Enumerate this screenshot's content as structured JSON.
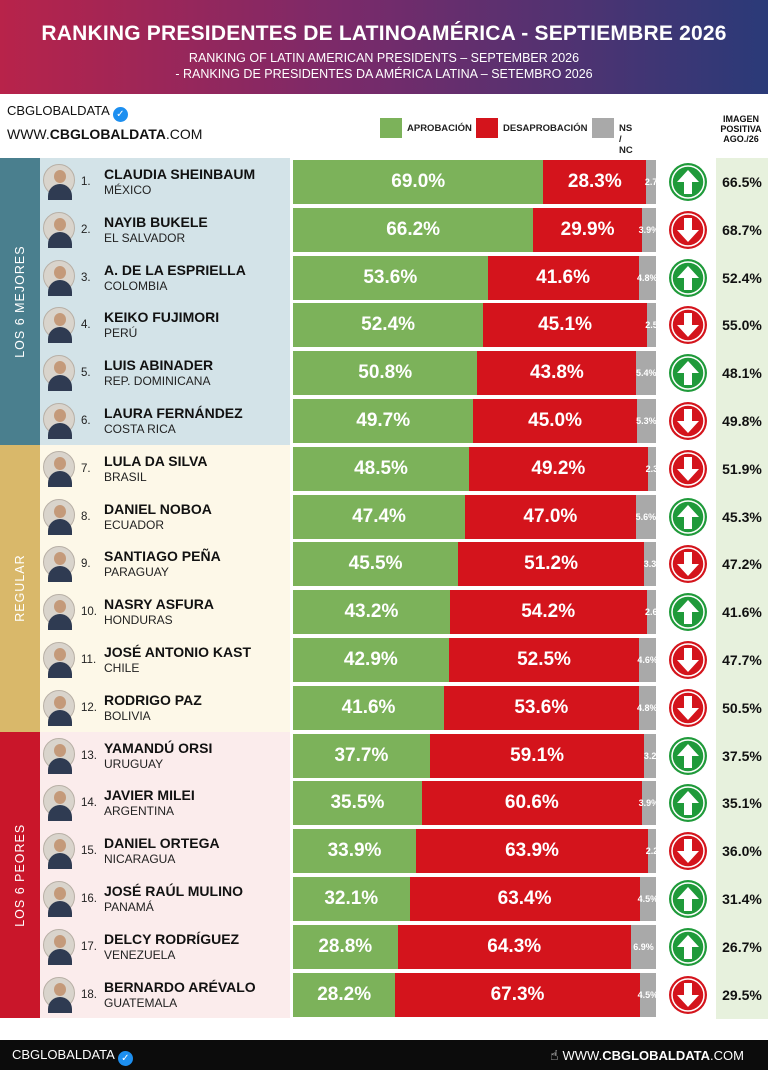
{
  "header": {
    "title": "RANKING PRESIDENTES DE LATINOAMÉRICA - SEPTIEMBRE 2026",
    "subtitle_en": "RANKING OF LATIN AMERICAN PRESIDENTS – SEPTEMBER 2026",
    "subtitle_pt": "- RANKING DE PRESIDENTES DA AMÉRICA LATINA – SETEMBRO 2026"
  },
  "brand": {
    "name": "CBGLOBALDATA",
    "url_prefix": "WWW.",
    "url_bold": "CBGLOBALDATA",
    "url_suffix": ".COM"
  },
  "footer": {
    "left": "CBGLOBALDATA",
    "right_prefix": "WWW.",
    "right_bold": "CBGLOBALDATA",
    "right_suffix": ".COM"
  },
  "colors": {
    "approval": "#7cb25a",
    "disapproval": "#d4141c",
    "nsnc": "#a9a9a9",
    "up": "#1f9a3a",
    "down": "#d4141c"
  },
  "chart_data": {
    "type": "bar",
    "stacked": true,
    "legend": [
      {
        "key": "approval",
        "label": "APROBACIÓN"
      },
      {
        "key": "disapproval",
        "label": "DESAPROBACIÓN"
      },
      {
        "key": "nsnc",
        "label": "NS / NC"
      }
    ],
    "image_header": [
      "IMAGEN",
      "POSITIVA",
      "AGO./26"
    ],
    "groups": [
      {
        "label": "LOS 6 MEJORES",
        "from": 1,
        "to": 6,
        "color": "#4a7f8e",
        "band": "#d3e3e8"
      },
      {
        "label": "REGULAR",
        "from": 7,
        "to": 12,
        "color": "#d9b86a",
        "band": "#fdf8e8"
      },
      {
        "label": "LOS 6 PEORES",
        "from": 13,
        "to": 18,
        "color": "#c9162a",
        "band": "#fbecec"
      }
    ],
    "rows": [
      {
        "rank": "1.",
        "name": "CLAUDIA SHEINBAUM",
        "country": "MÉXICO",
        "approval": 69.0,
        "disapproval": 28.3,
        "nsnc": 2.7,
        "approval_label": "69.0%",
        "disapproval_label": "28.3%",
        "nsnc_label": "2.7",
        "trend": "up",
        "image_aug": "66.5%"
      },
      {
        "rank": "2.",
        "name": "NAYIB BUKELE",
        "country": "EL SALVADOR",
        "approval": 66.2,
        "disapproval": 29.9,
        "nsnc": 3.9,
        "approval_label": "66.2%",
        "disapproval_label": "29.9%",
        "nsnc_label": "3.9%",
        "trend": "down",
        "image_aug": "68.7%"
      },
      {
        "rank": "3.",
        "name": "A. DE LA ESPRIELLA",
        "country": "COLOMBIA",
        "approval": 53.6,
        "disapproval": 41.6,
        "nsnc": 4.8,
        "approval_label": "53.6%",
        "disapproval_label": "41.6%",
        "nsnc_label": "4.8%",
        "trend": "up",
        "image_aug": "52.4%"
      },
      {
        "rank": "4.",
        "name": "KEIKO FUJIMORI",
        "country": "PERÚ",
        "approval": 52.4,
        "disapproval": 45.1,
        "nsnc": 2.5,
        "approval_label": "52.4%",
        "disapproval_label": "45.1%",
        "nsnc_label": "2.5",
        "trend": "down",
        "image_aug": "55.0%"
      },
      {
        "rank": "5.",
        "name": "LUIS ABINADER",
        "country": "REP. DOMINICANA",
        "approval": 50.8,
        "disapproval": 43.8,
        "nsnc": 5.4,
        "approval_label": "50.8%",
        "disapproval_label": "43.8%",
        "nsnc_label": "5.4%",
        "trend": "up",
        "image_aug": "48.1%"
      },
      {
        "rank": "6.",
        "name": "LAURA FERNÁNDEZ",
        "country": "COSTA RICA",
        "approval": 49.7,
        "disapproval": 45.0,
        "nsnc": 5.3,
        "approval_label": "49.7%",
        "disapproval_label": "45.0%",
        "nsnc_label": "5.3%",
        "trend": "down",
        "image_aug": "49.8%"
      },
      {
        "rank": "7.",
        "name": "LULA DA SILVA",
        "country": "BRASIL",
        "approval": 48.5,
        "disapproval": 49.2,
        "nsnc": 2.3,
        "approval_label": "48.5%",
        "disapproval_label": "49.2%",
        "nsnc_label": "2.3",
        "trend": "down",
        "image_aug": "51.9%"
      },
      {
        "rank": "8.",
        "name": "DANIEL NOBOA",
        "country": "ECUADOR",
        "approval": 47.4,
        "disapproval": 47.0,
        "nsnc": 5.6,
        "approval_label": "47.4%",
        "disapproval_label": "47.0%",
        "nsnc_label": "5.6%",
        "trend": "up",
        "image_aug": "45.3%"
      },
      {
        "rank": "9.",
        "name": "SANTIAGO PEÑA",
        "country": "PARAGUAY",
        "approval": 45.5,
        "disapproval": 51.2,
        "nsnc": 3.3,
        "approval_label": "45.5%",
        "disapproval_label": "51.2%",
        "nsnc_label": "3.3",
        "trend": "down",
        "image_aug": "47.2%"
      },
      {
        "rank": "10.",
        "name": "NASRY ASFURA",
        "country": "HONDURAS",
        "approval": 43.2,
        "disapproval": 54.2,
        "nsnc": 2.6,
        "approval_label": "43.2%",
        "disapproval_label": "54.2%",
        "nsnc_label": "2.6",
        "trend": "up",
        "image_aug": "41.6%"
      },
      {
        "rank": "11.",
        "name": "JOSÉ ANTONIO KAST",
        "country": "CHILE",
        "approval": 42.9,
        "disapproval": 52.5,
        "nsnc": 4.6,
        "approval_label": "42.9%",
        "disapproval_label": "52.5%",
        "nsnc_label": "4.6%",
        "trend": "down",
        "image_aug": "47.7%"
      },
      {
        "rank": "12.",
        "name": "RODRIGO PAZ",
        "country": "BOLIVIA",
        "approval": 41.6,
        "disapproval": 53.6,
        "nsnc": 4.8,
        "approval_label": "41.6%",
        "disapproval_label": "53.6%",
        "nsnc_label": "4.8%",
        "trend": "down",
        "image_aug": "50.5%"
      },
      {
        "rank": "13.",
        "name": "YAMANDÚ ORSI",
        "country": "URUGUAY",
        "approval": 37.7,
        "disapproval": 59.1,
        "nsnc": 3.2,
        "approval_label": "37.7%",
        "disapproval_label": "59.1%",
        "nsnc_label": "3.2",
        "trend": "up",
        "image_aug": "37.5%"
      },
      {
        "rank": "14.",
        "name": "JAVIER MILEI",
        "country": "ARGENTINA",
        "approval": 35.5,
        "disapproval": 60.6,
        "nsnc": 3.9,
        "approval_label": "35.5%",
        "disapproval_label": "60.6%",
        "nsnc_label": "3.9%",
        "trend": "up",
        "image_aug": "35.1%"
      },
      {
        "rank": "15.",
        "name": "DANIEL ORTEGA",
        "country": "NICARAGUA",
        "approval": 33.9,
        "disapproval": 63.9,
        "nsnc": 2.2,
        "approval_label": "33.9%",
        "disapproval_label": "63.9%",
        "nsnc_label": "2.2",
        "trend": "down",
        "image_aug": "36.0%"
      },
      {
        "rank": "16.",
        "name": "JOSÉ RAÚL MULINO",
        "country": "PANAMÁ",
        "approval": 32.1,
        "disapproval": 63.4,
        "nsnc": 4.5,
        "approval_label": "32.1%",
        "disapproval_label": "63.4%",
        "nsnc_label": "4.5%",
        "trend": "up",
        "image_aug": "31.4%"
      },
      {
        "rank": "17.",
        "name": "DELCY RODRÍGUEZ",
        "country": "VENEZUELA",
        "approval": 28.8,
        "disapproval": 64.3,
        "nsnc": 6.9,
        "approval_label": "28.8%",
        "disapproval_label": "64.3%",
        "nsnc_label": "6.9%",
        "trend": "up",
        "image_aug": "26.7%"
      },
      {
        "rank": "18.",
        "name": "BERNARDO ARÉVALO",
        "country": "GUATEMALA",
        "approval": 28.2,
        "disapproval": 67.3,
        "nsnc": 4.5,
        "approval_label": "28.2%",
        "disapproval_label": "67.3%",
        "nsnc_label": "4.5%",
        "trend": "down",
        "image_aug": "29.5%"
      }
    ]
  }
}
